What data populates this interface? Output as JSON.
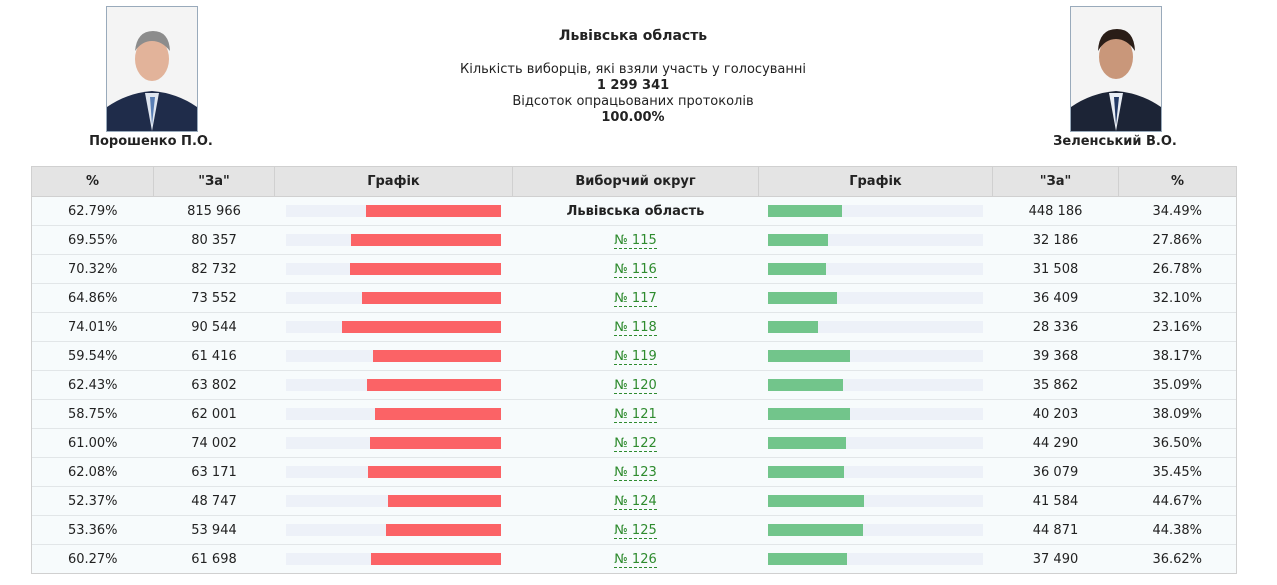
{
  "header": {
    "title": "Львівська область",
    "turnout_label": "Кількість виборців, які взяли участь у голосуванні",
    "turnout": "1 299 341",
    "processed_label": "Відсоток опрацьованих протоколів",
    "processed": "100.00%"
  },
  "candidates": {
    "left": "Порошенко П.О.",
    "right": "Зеленський В.О."
  },
  "table": {
    "columns": [
      "%",
      "\"За\"",
      "Графік",
      "Виборчий округ",
      "Графік",
      "\"За\"",
      "%"
    ],
    "rows": [
      [
        "62.79%",
        "815 966",
        "Львівська область",
        "448 186",
        "34.49%"
      ],
      [
        "69.55%",
        "80 357",
        "№ 115",
        "32 186",
        "27.86%"
      ],
      [
        "70.32%",
        "82 732",
        "№ 116",
        "31 508",
        "26.78%"
      ],
      [
        "64.86%",
        "73 552",
        "№ 117",
        "36 409",
        "32.10%"
      ],
      [
        "74.01%",
        "90 544",
        "№ 118",
        "28 336",
        "23.16%"
      ],
      [
        "59.54%",
        "61 416",
        "№ 119",
        "39 368",
        "38.17%"
      ],
      [
        "62.43%",
        "63 802",
        "№ 120",
        "35 862",
        "35.09%"
      ],
      [
        "58.75%",
        "62 001",
        "№ 121",
        "40 203",
        "38.09%"
      ],
      [
        "61.00%",
        "74 002",
        "№ 122",
        "44 290",
        "36.50%"
      ],
      [
        "62.08%",
        "63 171",
        "№ 123",
        "36 079",
        "35.45%"
      ],
      [
        "52.37%",
        "48 747",
        "№ 124",
        "41 584",
        "44.67%"
      ],
      [
        "53.36%",
        "53 944",
        "№ 125",
        "44 871",
        "44.38%"
      ],
      [
        "60.27%",
        "61 698",
        "№ 126",
        "37 490",
        "36.62%"
      ]
    ]
  }
}
